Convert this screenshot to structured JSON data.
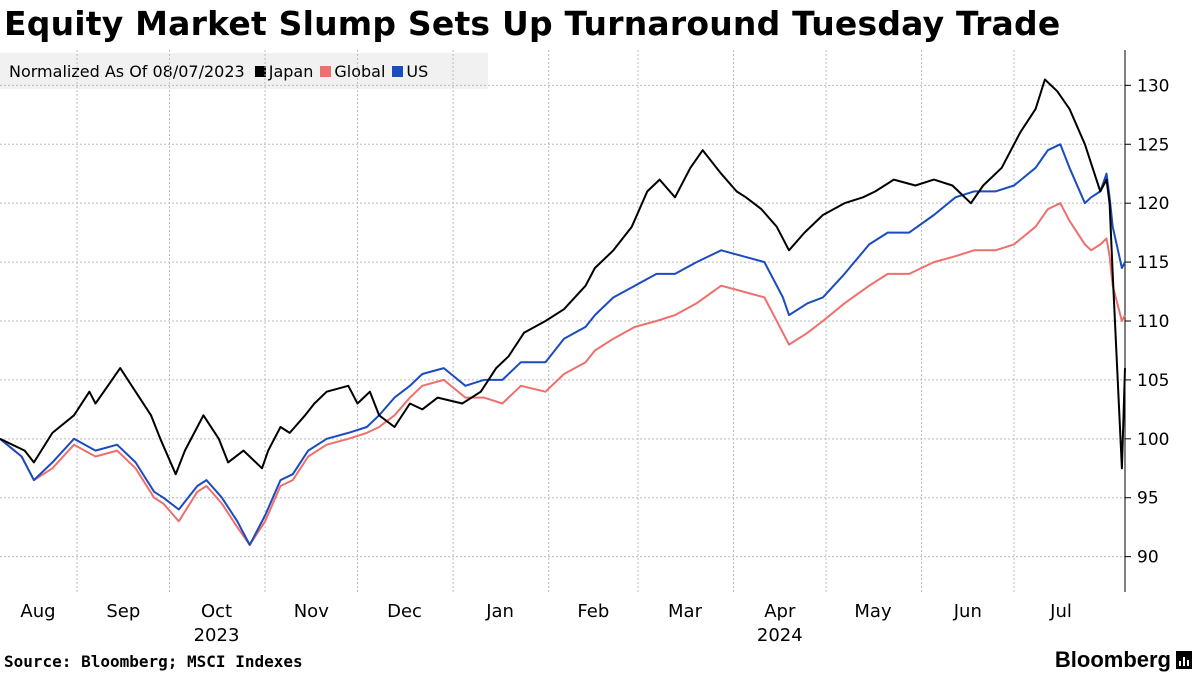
{
  "title": "Equity Market Slump Sets Up Turnaround Tuesday Trade",
  "legend": {
    "note": "Normalized As Of 08/07/2023",
    "items": [
      {
        "label": "Japan",
        "color": "#000000"
      },
      {
        "label": "Global",
        "color": "#ef6f6c"
      },
      {
        "label": "US",
        "color": "#1a4bbf"
      }
    ]
  },
  "source": "Source: Bloomberg; MSCI Indexes",
  "brand": "Bloomberg",
  "chart_data": {
    "type": "line",
    "x_axis": {
      "month_labels": [
        "Aug",
        "Sep",
        "Oct",
        "Nov",
        "Dec",
        "Jan",
        "Feb",
        "Mar",
        "Apr",
        "May",
        "Jun",
        "Jul"
      ],
      "year_labels": [
        {
          "label": "2023",
          "under": "Oct"
        },
        {
          "label": "2024",
          "under": "Apr"
        }
      ],
      "range": [
        "2023-08-07",
        "2024-08-06"
      ]
    },
    "y_axis": {
      "ticks": [
        90,
        95,
        100,
        105,
        110,
        115,
        120,
        125,
        130
      ],
      "ylim": [
        87,
        133
      ],
      "position": "right"
    },
    "grid": true,
    "series": [
      {
        "name": "Japan",
        "color": "#000000",
        "points": [
          [
            "2023-08-07",
            100
          ],
          [
            "2023-08-15",
            99
          ],
          [
            "2023-08-18",
            98
          ],
          [
            "2023-08-24",
            100.5
          ],
          [
            "2023-08-31",
            102
          ],
          [
            "2023-09-05",
            104
          ],
          [
            "2023-09-07",
            103
          ],
          [
            "2023-09-11",
            104.5
          ],
          [
            "2023-09-15",
            106
          ],
          [
            "2023-09-20",
            104
          ],
          [
            "2023-09-25",
            102
          ],
          [
            "2023-09-28",
            100
          ],
          [
            "2023-10-03",
            97
          ],
          [
            "2023-10-06",
            99
          ],
          [
            "2023-10-10",
            101
          ],
          [
            "2023-10-12",
            102
          ],
          [
            "2023-10-17",
            100
          ],
          [
            "2023-10-20",
            98
          ],
          [
            "2023-10-25",
            99
          ],
          [
            "2023-10-31",
            97.5
          ],
          [
            "2023-11-02",
            99
          ],
          [
            "2023-11-06",
            101
          ],
          [
            "2023-11-09",
            100.5
          ],
          [
            "2023-11-14",
            102
          ],
          [
            "2023-11-17",
            103
          ],
          [
            "2023-11-21",
            104
          ],
          [
            "2023-11-28",
            104.5
          ],
          [
            "2023-12-01",
            103
          ],
          [
            "2023-12-05",
            104
          ],
          [
            "2023-12-08",
            102
          ],
          [
            "2023-12-13",
            101
          ],
          [
            "2023-12-18",
            103
          ],
          [
            "2023-12-22",
            102.5
          ],
          [
            "2023-12-27",
            103.5
          ],
          [
            "2024-01-04",
            103
          ],
          [
            "2024-01-10",
            104
          ],
          [
            "2024-01-15",
            106
          ],
          [
            "2024-01-19",
            107
          ],
          [
            "2024-01-24",
            109
          ],
          [
            "2024-01-31",
            110
          ],
          [
            "2024-02-06",
            111
          ],
          [
            "2024-02-13",
            113
          ],
          [
            "2024-02-16",
            114.5
          ],
          [
            "2024-02-22",
            116
          ],
          [
            "2024-02-28",
            118
          ],
          [
            "2024-03-04",
            121
          ],
          [
            "2024-03-08",
            122
          ],
          [
            "2024-03-13",
            120.5
          ],
          [
            "2024-03-18",
            123
          ],
          [
            "2024-03-22",
            124.5
          ],
          [
            "2024-03-28",
            122.5
          ],
          [
            "2024-04-02",
            121
          ],
          [
            "2024-04-05",
            120.5
          ],
          [
            "2024-04-10",
            119.5
          ],
          [
            "2024-04-15",
            118
          ],
          [
            "2024-04-19",
            116
          ],
          [
            "2024-04-24",
            117.5
          ],
          [
            "2024-04-30",
            119
          ],
          [
            "2024-05-07",
            120
          ],
          [
            "2024-05-13",
            120.5
          ],
          [
            "2024-05-17",
            121
          ],
          [
            "2024-05-23",
            122
          ],
          [
            "2024-05-30",
            121.5
          ],
          [
            "2024-06-05",
            122
          ],
          [
            "2024-06-11",
            121.5
          ],
          [
            "2024-06-17",
            120
          ],
          [
            "2024-06-21",
            121.5
          ],
          [
            "2024-06-27",
            123
          ],
          [
            "2024-07-03",
            126
          ],
          [
            "2024-07-08",
            128
          ],
          [
            "2024-07-11",
            130.5
          ],
          [
            "2024-07-15",
            129.5
          ],
          [
            "2024-07-19",
            128
          ],
          [
            "2024-07-24",
            125
          ],
          [
            "2024-07-29",
            121
          ],
          [
            "2024-07-31",
            122
          ],
          [
            "2024-08-01",
            120
          ],
          [
            "2024-08-02",
            114
          ],
          [
            "2024-08-05",
            97.5
          ],
          [
            "2024-08-06",
            106
          ]
        ]
      },
      {
        "name": "Global",
        "color": "#ef6f6c",
        "points": [
          [
            "2023-08-07",
            100
          ],
          [
            "2023-08-14",
            98.5
          ],
          [
            "2023-08-18",
            96.5
          ],
          [
            "2023-08-24",
            97.5
          ],
          [
            "2023-08-31",
            99.5
          ],
          [
            "2023-09-07",
            98.5
          ],
          [
            "2023-09-14",
            99
          ],
          [
            "2023-09-20",
            97.5
          ],
          [
            "2023-09-26",
            95
          ],
          [
            "2023-09-29",
            94.5
          ],
          [
            "2023-10-04",
            93
          ],
          [
            "2023-10-10",
            95.5
          ],
          [
            "2023-10-13",
            96
          ],
          [
            "2023-10-18",
            94.5
          ],
          [
            "2023-10-23",
            92.5
          ],
          [
            "2023-10-27",
            91
          ],
          [
            "2023-11-01",
            93
          ],
          [
            "2023-11-06",
            96
          ],
          [
            "2023-11-10",
            96.5
          ],
          [
            "2023-11-15",
            98.5
          ],
          [
            "2023-11-21",
            99.5
          ],
          [
            "2023-11-28",
            100
          ],
          [
            "2023-12-04",
            100.5
          ],
          [
            "2023-12-08",
            101
          ],
          [
            "2023-12-13",
            102
          ],
          [
            "2023-12-18",
            103.5
          ],
          [
            "2023-12-22",
            104.5
          ],
          [
            "2023-12-29",
            105
          ],
          [
            "2024-01-05",
            103.5
          ],
          [
            "2024-01-11",
            103.5
          ],
          [
            "2024-01-17",
            103
          ],
          [
            "2024-01-23",
            104.5
          ],
          [
            "2024-01-31",
            104
          ],
          [
            "2024-02-06",
            105.5
          ],
          [
            "2024-02-13",
            106.5
          ],
          [
            "2024-02-16",
            107.5
          ],
          [
            "2024-02-22",
            108.5
          ],
          [
            "2024-02-29",
            109.5
          ],
          [
            "2024-03-07",
            110
          ],
          [
            "2024-03-13",
            110.5
          ],
          [
            "2024-03-20",
            111.5
          ],
          [
            "2024-03-28",
            113
          ],
          [
            "2024-04-04",
            112.5
          ],
          [
            "2024-04-11",
            112
          ],
          [
            "2024-04-17",
            109
          ],
          [
            "2024-04-19",
            108
          ],
          [
            "2024-04-25",
            109
          ],
          [
            "2024-04-30",
            110
          ],
          [
            "2024-05-07",
            111.5
          ],
          [
            "2024-05-15",
            113
          ],
          [
            "2024-05-21",
            114
          ],
          [
            "2024-05-28",
            114
          ],
          [
            "2024-06-05",
            115
          ],
          [
            "2024-06-12",
            115.5
          ],
          [
            "2024-06-18",
            116
          ],
          [
            "2024-06-25",
            116
          ],
          [
            "2024-07-01",
            116.5
          ],
          [
            "2024-07-08",
            118
          ],
          [
            "2024-07-12",
            119.5
          ],
          [
            "2024-07-16",
            120
          ],
          [
            "2024-07-19",
            118.5
          ],
          [
            "2024-07-24",
            116.5
          ],
          [
            "2024-07-26",
            116
          ],
          [
            "2024-07-29",
            116.5
          ],
          [
            "2024-07-31",
            117
          ],
          [
            "2024-08-01",
            115.5
          ],
          [
            "2024-08-02",
            113
          ],
          [
            "2024-08-05",
            110
          ],
          [
            "2024-08-06",
            110.5
          ]
        ]
      },
      {
        "name": "US",
        "color": "#1a4bbf",
        "points": [
          [
            "2023-08-07",
            100
          ],
          [
            "2023-08-14",
            98.5
          ],
          [
            "2023-08-18",
            96.5
          ],
          [
            "2023-08-24",
            98
          ],
          [
            "2023-08-31",
            100
          ],
          [
            "2023-09-07",
            99
          ],
          [
            "2023-09-14",
            99.5
          ],
          [
            "2023-09-20",
            98
          ],
          [
            "2023-09-26",
            95.5
          ],
          [
            "2023-09-29",
            95
          ],
          [
            "2023-10-04",
            94
          ],
          [
            "2023-10-10",
            96
          ],
          [
            "2023-10-13",
            96.5
          ],
          [
            "2023-10-18",
            95
          ],
          [
            "2023-10-23",
            93
          ],
          [
            "2023-10-27",
            91
          ],
          [
            "2023-11-01",
            93.5
          ],
          [
            "2023-11-06",
            96.5
          ],
          [
            "2023-11-10",
            97
          ],
          [
            "2023-11-15",
            99
          ],
          [
            "2023-11-21",
            100
          ],
          [
            "2023-11-28",
            100.5
          ],
          [
            "2023-12-04",
            101
          ],
          [
            "2023-12-08",
            102
          ],
          [
            "2023-12-13",
            103.5
          ],
          [
            "2023-12-18",
            104.5
          ],
          [
            "2023-12-22",
            105.5
          ],
          [
            "2023-12-29",
            106
          ],
          [
            "2024-01-05",
            104.5
          ],
          [
            "2024-01-11",
            105
          ],
          [
            "2024-01-17",
            105
          ],
          [
            "2024-01-23",
            106.5
          ],
          [
            "2024-01-31",
            106.5
          ],
          [
            "2024-02-06",
            108.5
          ],
          [
            "2024-02-13",
            109.5
          ],
          [
            "2024-02-16",
            110.5
          ],
          [
            "2024-02-22",
            112
          ],
          [
            "2024-02-29",
            113
          ],
          [
            "2024-03-07",
            114
          ],
          [
            "2024-03-13",
            114
          ],
          [
            "2024-03-20",
            115
          ],
          [
            "2024-03-28",
            116
          ],
          [
            "2024-04-04",
            115.5
          ],
          [
            "2024-04-11",
            115
          ],
          [
            "2024-04-17",
            112
          ],
          [
            "2024-04-19",
            110.5
          ],
          [
            "2024-04-25",
            111.5
          ],
          [
            "2024-04-30",
            112
          ],
          [
            "2024-05-07",
            114
          ],
          [
            "2024-05-15",
            116.5
          ],
          [
            "2024-05-21",
            117.5
          ],
          [
            "2024-05-28",
            117.5
          ],
          [
            "2024-06-05",
            119
          ],
          [
            "2024-06-12",
            120.5
          ],
          [
            "2024-06-18",
            121
          ],
          [
            "2024-06-25",
            121
          ],
          [
            "2024-07-01",
            121.5
          ],
          [
            "2024-07-08",
            123
          ],
          [
            "2024-07-12",
            124.5
          ],
          [
            "2024-07-16",
            125
          ],
          [
            "2024-07-19",
            123
          ],
          [
            "2024-07-24",
            120
          ],
          [
            "2024-07-26",
            120.5
          ],
          [
            "2024-07-29",
            121
          ],
          [
            "2024-07-31",
            122.5
          ],
          [
            "2024-08-01",
            120.5
          ],
          [
            "2024-08-02",
            118
          ],
          [
            "2024-08-05",
            114.5
          ],
          [
            "2024-08-06",
            115
          ]
        ]
      }
    ]
  }
}
